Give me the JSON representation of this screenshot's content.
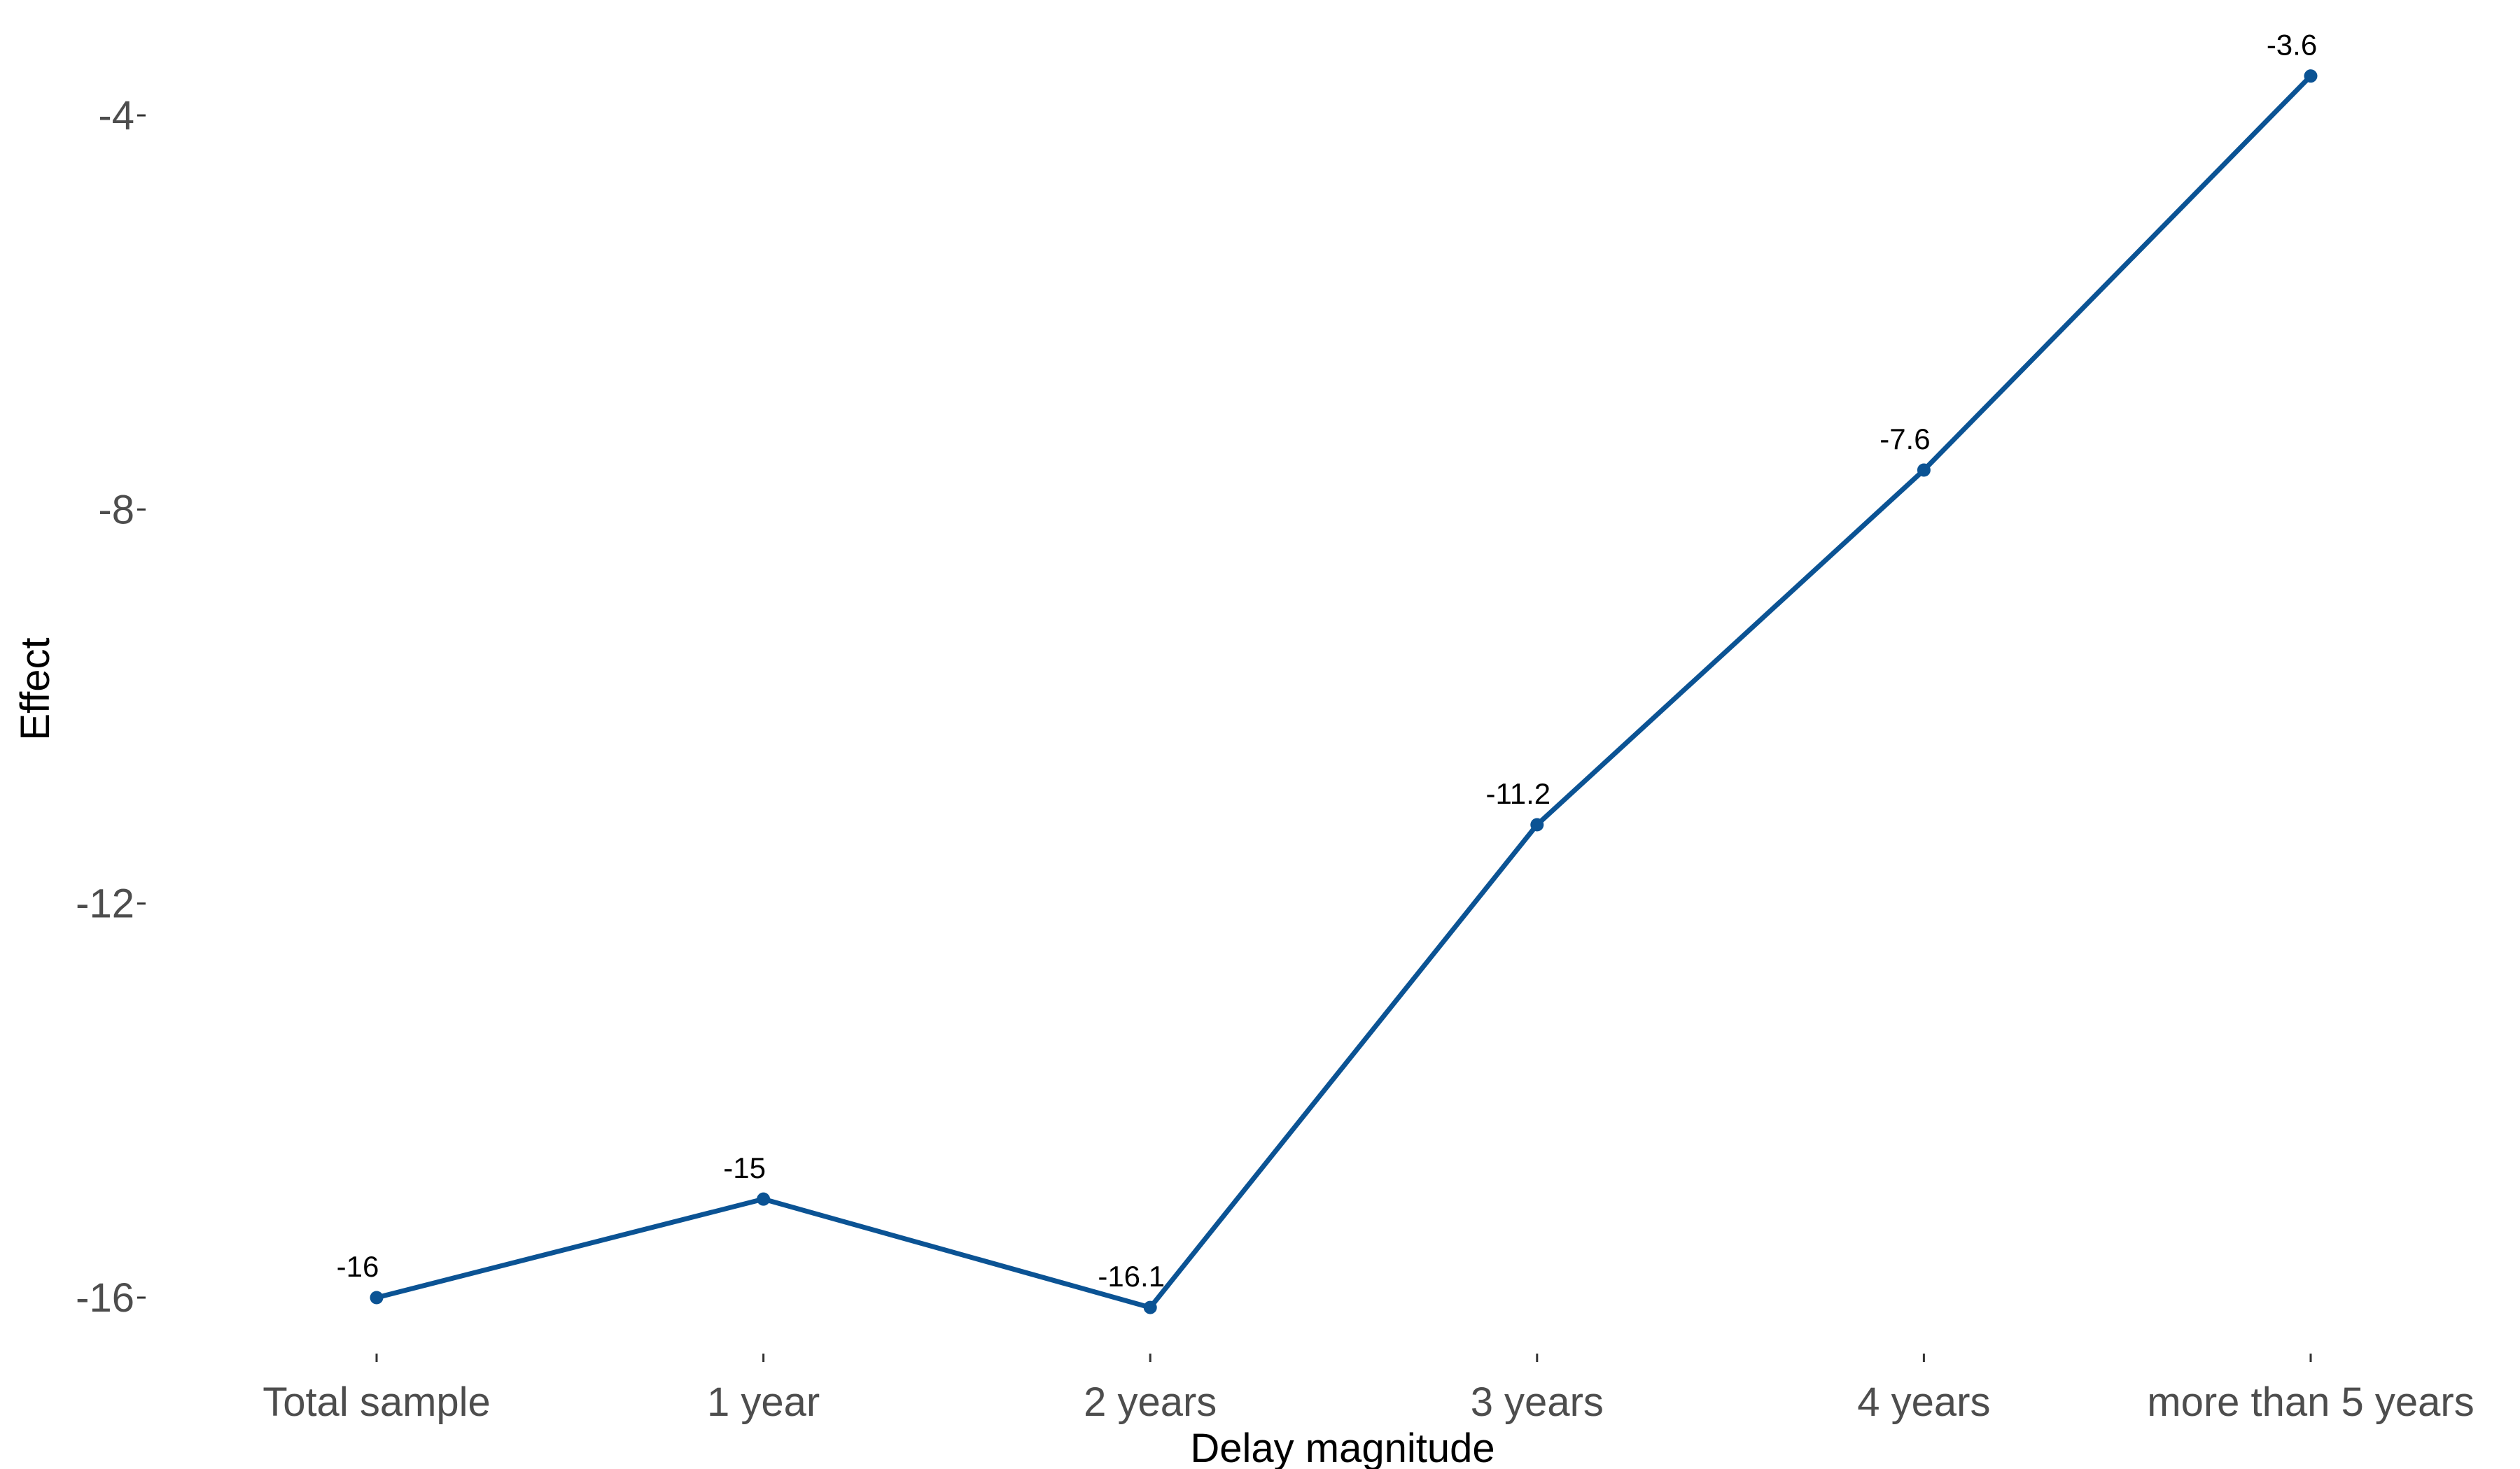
{
  "chart_data": {
    "type": "line",
    "categories": [
      "Total sample",
      "1 year",
      "2 years",
      "3 years",
      "4 years",
      "more than 5 years"
    ],
    "values": [
      -16,
      -15,
      -16.1,
      -11.2,
      -7.6,
      -3.6
    ],
    "data_labels": [
      "-16",
      "-15",
      "-16.1",
      "-11.2",
      "-7.6",
      "-3.6"
    ],
    "title": "",
    "xlabel": "Delay magnitude",
    "ylabel": "Effect",
    "yticks": [
      -4,
      -8,
      -12,
      -16
    ],
    "ytick_labels": [
      "-4",
      "-8",
      "-12",
      "-16"
    ],
    "ylim": [
      -16.8,
      -3.2
    ],
    "grid": false,
    "legend": "none",
    "line_color": "#0b5394",
    "point_color": "#0b5394"
  }
}
